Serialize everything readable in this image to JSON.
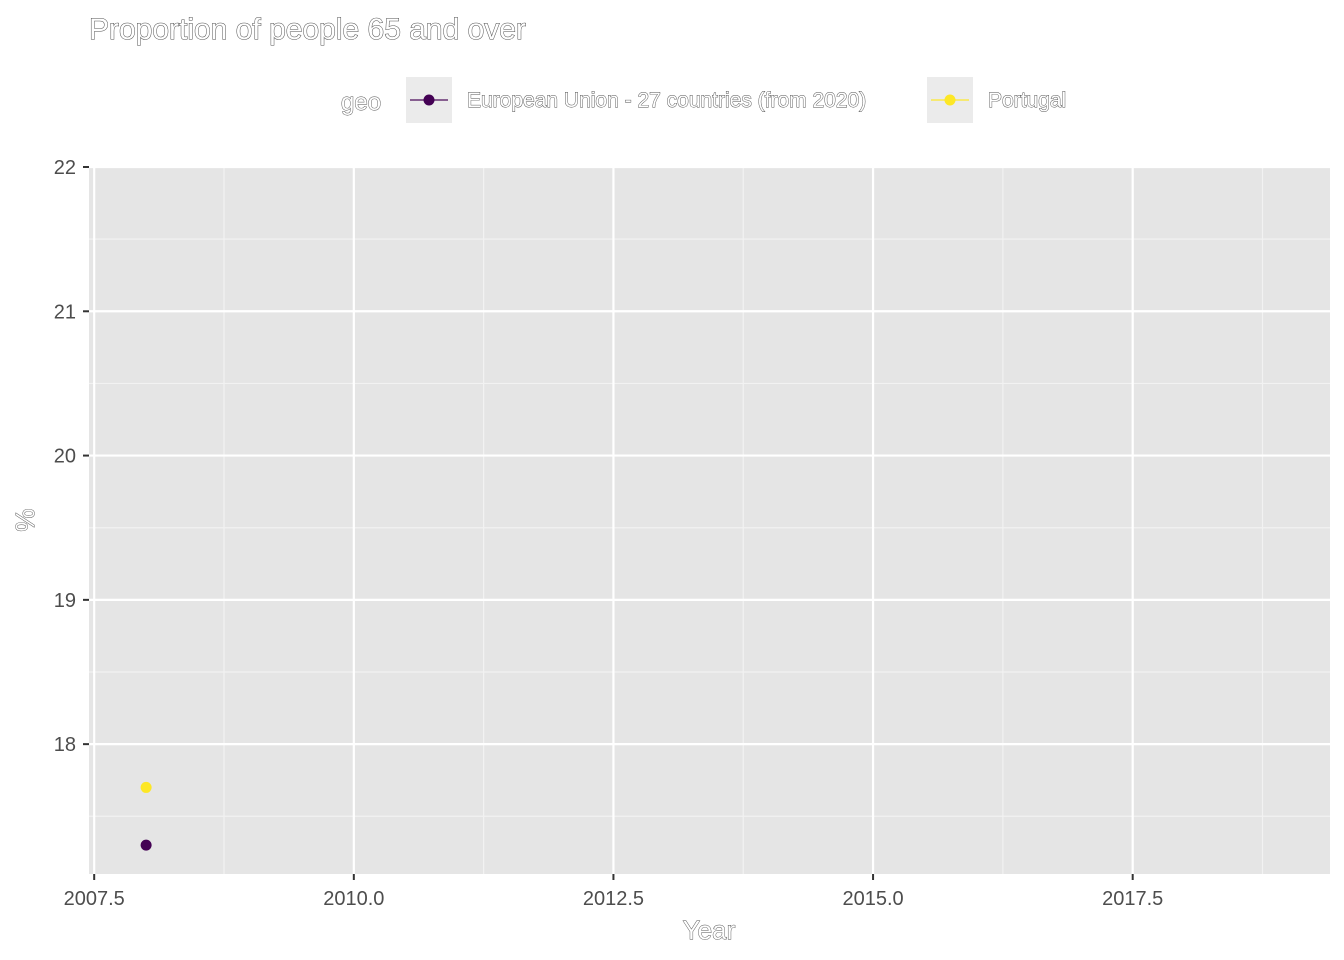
{
  "chart_data": {
    "type": "scatter",
    "title": "Proportion of people 65 and over",
    "xlabel": "Year",
    "ylabel": "%",
    "xlim": [
      2007.45,
      2019.4
    ],
    "ylim": [
      17.1,
      22.0
    ],
    "x_ticks": [
      2007.5,
      2010.0,
      2012.5,
      2015.0,
      2017.5
    ],
    "x_tick_labels": [
      "2007.5",
      "2010.0",
      "2012.5",
      "2015.0",
      "2017.5"
    ],
    "y_ticks": [
      18,
      19,
      20,
      21,
      22
    ],
    "y_tick_labels": [
      "18",
      "19",
      "20",
      "21",
      "22"
    ],
    "grid": true,
    "legend_title": "geo",
    "legend_position": "top",
    "series": [
      {
        "name": "European Union - 27 countries (from 2020)",
        "color": "#440154",
        "points": [
          {
            "x": 2008,
            "y": 17.3
          }
        ]
      },
      {
        "name": "Portugal",
        "color": "#FDE725",
        "points": [
          {
            "x": 2008,
            "y": 17.7
          }
        ]
      }
    ]
  }
}
